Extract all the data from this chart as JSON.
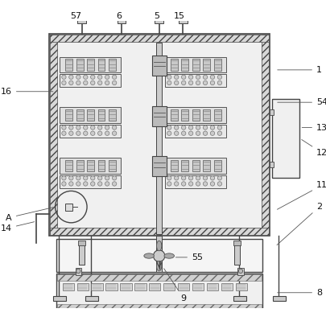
{
  "lc": "#444444",
  "fc_light": "#e8e8e8",
  "fc_hatch": "#d0d0d0",
  "fc_panel": "#f0f0f0",
  "bg_dot": "#eeeeee"
}
